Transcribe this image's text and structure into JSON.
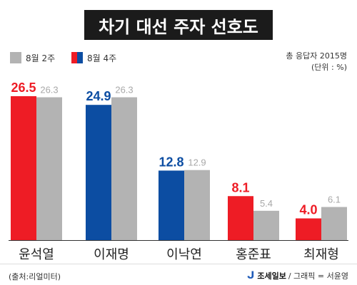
{
  "title": "차기 대선 주자 선호도",
  "legend": {
    "prev_label": "8월 2주",
    "curr_label": "8월 4주"
  },
  "note": {
    "respondents": "총 응답자 2015명",
    "unit": "(단위 : %)"
  },
  "footer": {
    "source": "(출처:리얼미터)",
    "brand": "조세일보",
    "credit": "/ 그래픽 = 서윤영"
  },
  "colors": {
    "red": "#ee1c25",
    "blue": "#0c4da2",
    "grey": "#b3b3b3",
    "title_bg": "#1b1b1b"
  },
  "chart_data": {
    "type": "bar",
    "categories": [
      "윤석열",
      "이재명",
      "이낙연",
      "홍준표",
      "최재형"
    ],
    "series": [
      {
        "name": "8월 4주",
        "values": [
          26.5,
          24.9,
          12.8,
          8.1,
          4.0
        ],
        "colors": [
          "#ee1c25",
          "#0c4da2",
          "#0c4da2",
          "#ee1c25",
          "#ee1c25"
        ]
      },
      {
        "name": "8월 2주",
        "values": [
          26.3,
          26.3,
          12.9,
          5.4,
          6.1
        ],
        "color": "#b3b3b3"
      }
    ],
    "value_labels": {
      "curr": [
        "26.5",
        "24.9",
        "12.8",
        "8.1",
        "4.0"
      ],
      "prev": [
        "26.3",
        "26.3",
        "12.9",
        "5.4",
        "6.1"
      ]
    },
    "ylim": [
      0,
      26.5
    ],
    "grid": false
  }
}
